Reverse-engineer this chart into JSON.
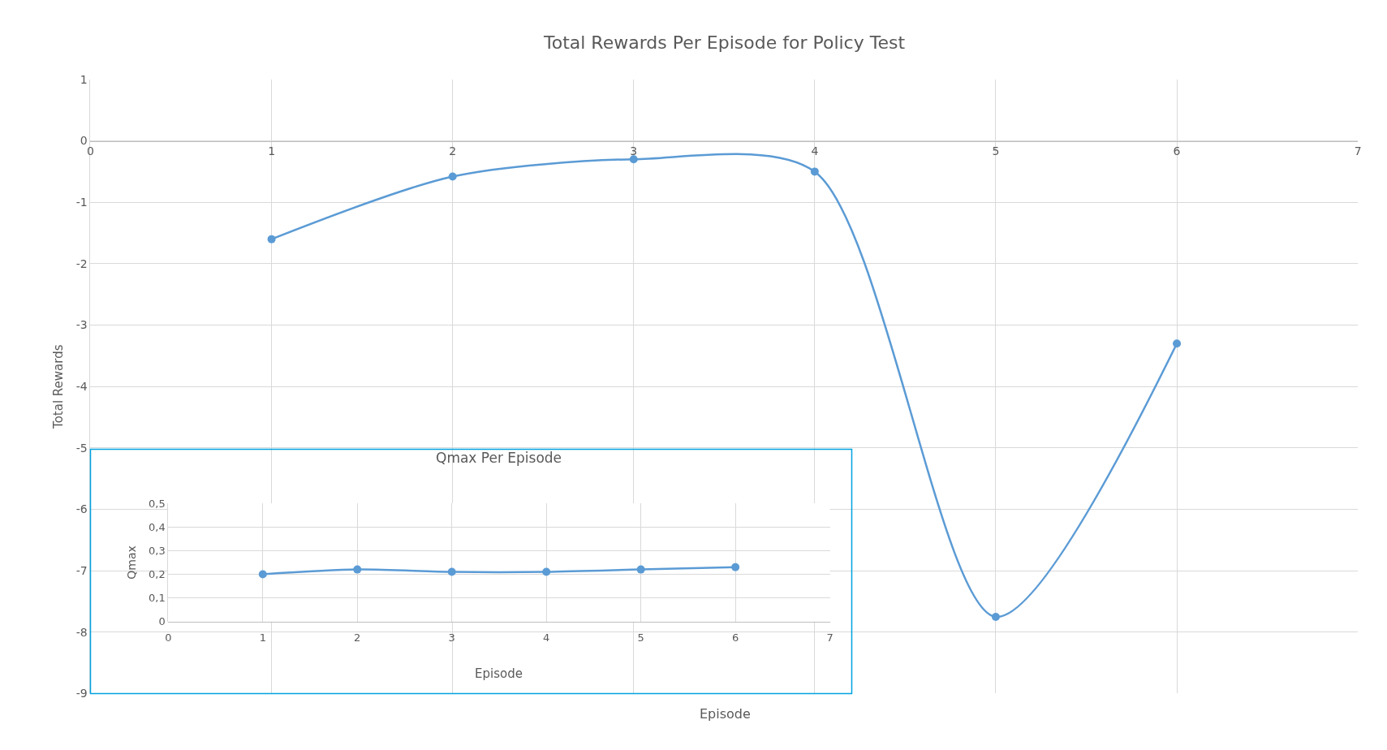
{
  "chart_data": [
    {
      "type": "line",
      "title": "Total Rewards Per Episode for Policy Test",
      "xlabel": "Episode",
      "ylabel": "Total Rewards",
      "x": [
        1,
        2,
        3,
        4,
        5,
        6
      ],
      "series": [
        {
          "color": "#5b9bd5",
          "values": [
            -1.6,
            -0.58,
            -0.3,
            -0.5,
            -7.75,
            -3.3
          ]
        }
      ],
      "xlim": [
        0,
        7
      ],
      "xticks": [
        0,
        1,
        2,
        3,
        4,
        5,
        6,
        7
      ],
      "ylim": [
        -9,
        1
      ],
      "yticks": [
        -9,
        -8,
        -7,
        -6,
        -5,
        -4,
        -3,
        -2,
        -1,
        0,
        1
      ],
      "grid": true,
      "marker": "circle",
      "line_style": "solid"
    },
    {
      "type": "line",
      "title": "Qmax Per Episode",
      "xlabel": "Episode",
      "ylabel": "Qmax",
      "x": [
        1,
        2,
        3,
        4,
        5,
        6
      ],
      "series": [
        {
          "color": "#5b9bd5",
          "values": [
            0.2,
            0.22,
            0.21,
            0.21,
            0.22,
            0.23
          ]
        }
      ],
      "xlim": [
        0,
        7
      ],
      "xticks": [
        0,
        1,
        2,
        3,
        4,
        5,
        6,
        7
      ],
      "ylim": [
        0,
        0.5
      ],
      "yticks": [
        0,
        {
          "value": 0.1,
          "label": "0,1"
        },
        {
          "value": 0.2,
          "label": "0,2"
        },
        {
          "value": 0.3,
          "label": "0,3"
        },
        {
          "value": 0.4,
          "label": "0,4"
        },
        {
          "value": 0.5,
          "label": "0,5"
        }
      ],
      "grid": true,
      "marker": "circle",
      "line_style": "solid"
    }
  ]
}
